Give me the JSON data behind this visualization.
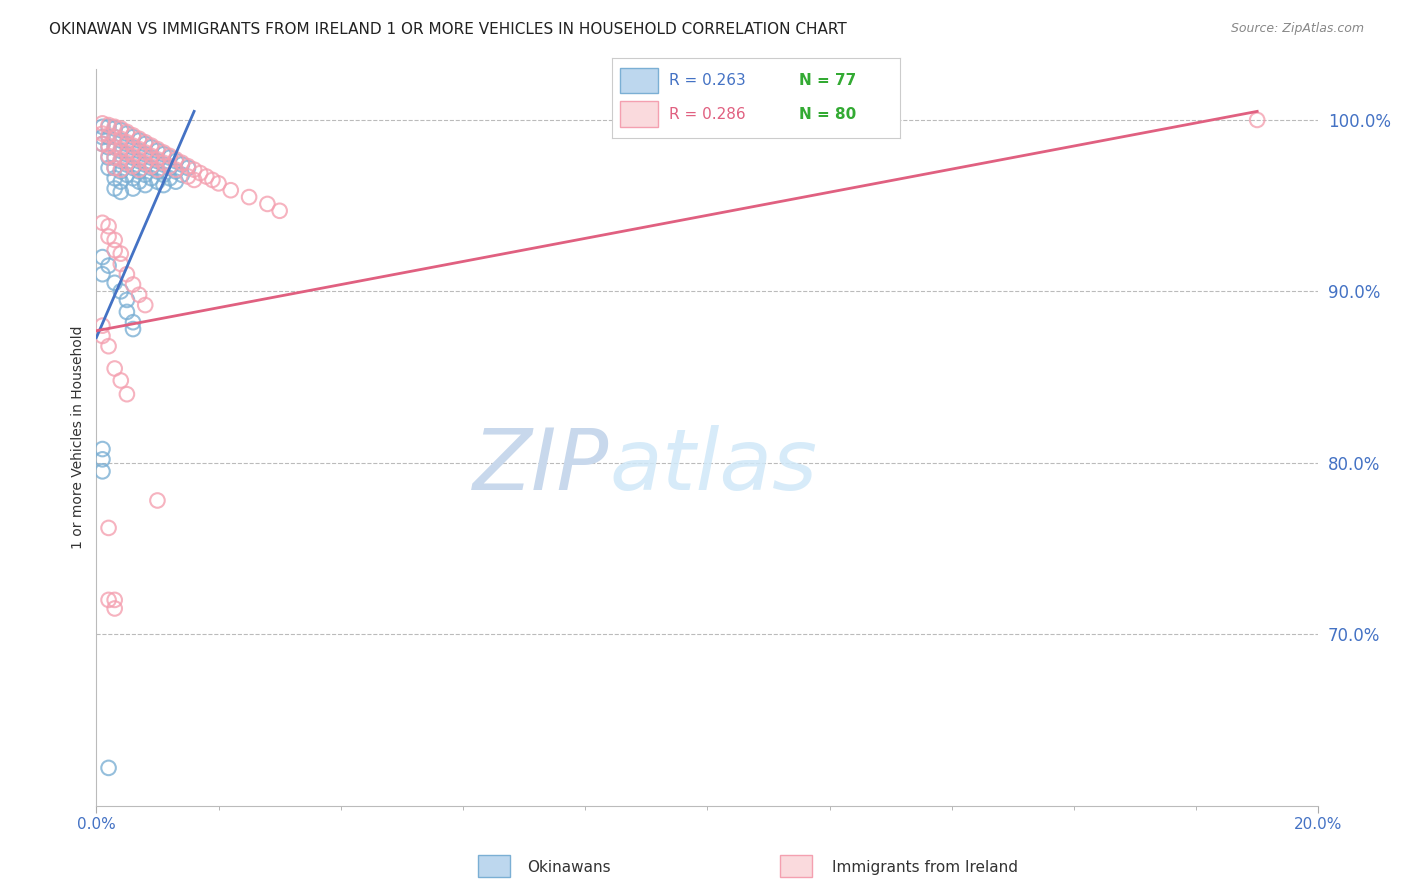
{
  "title": "OKINAWAN VS IMMIGRANTS FROM IRELAND 1 OR MORE VEHICLES IN HOUSEHOLD CORRELATION CHART",
  "source": "Source: ZipAtlas.com",
  "ylabel": "1 or more Vehicles in Household",
  "xlim": [
    0.0,
    0.2
  ],
  "ylim": [
    0.6,
    1.03
  ],
  "ytick_positions": [
    0.7,
    0.8,
    0.9,
    1.0
  ],
  "ytick_labels": [
    "70.0%",
    "80.0%",
    "90.0%",
    "100.0%"
  ],
  "legend_blue_r": "R = 0.263",
  "legend_blue_n": "N = 77",
  "legend_pink_r": "R = 0.286",
  "legend_pink_n": "N = 80",
  "blue_color": "#7BAFD4",
  "pink_color": "#F4A0B0",
  "blue_line_color": "#4472C4",
  "pink_line_color": "#E06080",
  "title_color": "#222222",
  "axis_label_color": "#333333",
  "tick_label_color": "#4472C4",
  "grid_color": "#BBBBBB",
  "watermark_zip_color": "#C8D8EC",
  "watermark_atlas_color": "#C8D8EC",
  "blue_line_x0": 0.0,
  "blue_line_y0": 0.873,
  "blue_line_x1": 0.016,
  "blue_line_y1": 1.005,
  "pink_line_x0": 0.0,
  "pink_line_y0": 0.877,
  "pink_line_x1": 0.19,
  "pink_line_y1": 1.005,
  "blue_scatter_x": [
    0.001,
    0.001,
    0.001,
    0.002,
    0.002,
    0.002,
    0.002,
    0.002,
    0.003,
    0.003,
    0.003,
    0.003,
    0.003,
    0.003,
    0.003,
    0.004,
    0.004,
    0.004,
    0.004,
    0.004,
    0.004,
    0.004,
    0.005,
    0.005,
    0.005,
    0.005,
    0.005,
    0.006,
    0.006,
    0.006,
    0.006,
    0.006,
    0.006,
    0.007,
    0.007,
    0.007,
    0.007,
    0.007,
    0.008,
    0.008,
    0.008,
    0.008,
    0.008,
    0.009,
    0.009,
    0.009,
    0.009,
    0.01,
    0.01,
    0.01,
    0.01,
    0.011,
    0.011,
    0.011,
    0.011,
    0.012,
    0.012,
    0.012,
    0.013,
    0.013,
    0.013,
    0.014,
    0.014,
    0.015,
    0.001,
    0.001,
    0.002,
    0.003,
    0.004,
    0.005,
    0.005,
    0.006,
    0.006,
    0.001,
    0.001,
    0.001,
    0.002
  ],
  "blue_scatter_y": [
    0.996,
    0.99,
    0.986,
    0.996,
    0.99,
    0.984,
    0.978,
    0.972,
    0.995,
    0.99,
    0.984,
    0.978,
    0.972,
    0.966,
    0.96,
    0.994,
    0.988,
    0.982,
    0.976,
    0.97,
    0.964,
    0.958,
    0.992,
    0.986,
    0.98,
    0.974,
    0.968,
    0.99,
    0.984,
    0.978,
    0.972,
    0.966,
    0.96,
    0.988,
    0.982,
    0.976,
    0.97,
    0.964,
    0.986,
    0.98,
    0.974,
    0.968,
    0.962,
    0.984,
    0.978,
    0.972,
    0.966,
    0.982,
    0.976,
    0.97,
    0.964,
    0.98,
    0.974,
    0.968,
    0.962,
    0.978,
    0.972,
    0.966,
    0.976,
    0.97,
    0.964,
    0.974,
    0.968,
    0.972,
    0.92,
    0.91,
    0.915,
    0.905,
    0.9,
    0.895,
    0.888,
    0.882,
    0.878,
    0.808,
    0.802,
    0.795,
    0.622
  ],
  "pink_scatter_x": [
    0.001,
    0.001,
    0.001,
    0.002,
    0.002,
    0.002,
    0.002,
    0.003,
    0.003,
    0.003,
    0.003,
    0.003,
    0.004,
    0.004,
    0.004,
    0.004,
    0.004,
    0.005,
    0.005,
    0.005,
    0.005,
    0.006,
    0.006,
    0.006,
    0.006,
    0.007,
    0.007,
    0.007,
    0.007,
    0.008,
    0.008,
    0.008,
    0.009,
    0.009,
    0.009,
    0.01,
    0.01,
    0.01,
    0.011,
    0.011,
    0.012,
    0.012,
    0.013,
    0.013,
    0.014,
    0.015,
    0.015,
    0.016,
    0.016,
    0.017,
    0.018,
    0.019,
    0.02,
    0.022,
    0.025,
    0.028,
    0.03,
    0.001,
    0.002,
    0.002,
    0.003,
    0.003,
    0.004,
    0.004,
    0.005,
    0.006,
    0.007,
    0.008,
    0.001,
    0.001,
    0.002,
    0.003,
    0.004,
    0.005,
    0.01,
    0.002,
    0.003,
    0.19,
    0.002,
    0.003
  ],
  "pink_scatter_y": [
    0.998,
    0.992,
    0.986,
    0.997,
    0.991,
    0.985,
    0.979,
    0.996,
    0.99,
    0.984,
    0.978,
    0.972,
    0.995,
    0.989,
    0.983,
    0.977,
    0.971,
    0.993,
    0.987,
    0.981,
    0.975,
    0.991,
    0.985,
    0.979,
    0.973,
    0.989,
    0.983,
    0.977,
    0.971,
    0.987,
    0.981,
    0.975,
    0.985,
    0.979,
    0.973,
    0.983,
    0.977,
    0.971,
    0.981,
    0.975,
    0.979,
    0.973,
    0.977,
    0.971,
    0.975,
    0.973,
    0.967,
    0.971,
    0.965,
    0.969,
    0.967,
    0.965,
    0.963,
    0.959,
    0.955,
    0.951,
    0.947,
    0.94,
    0.938,
    0.932,
    0.93,
    0.924,
    0.922,
    0.916,
    0.91,
    0.904,
    0.898,
    0.892,
    0.88,
    0.874,
    0.868,
    0.855,
    0.848,
    0.84,
    0.778,
    0.762,
    0.72,
    1.0,
    0.72,
    0.715
  ]
}
